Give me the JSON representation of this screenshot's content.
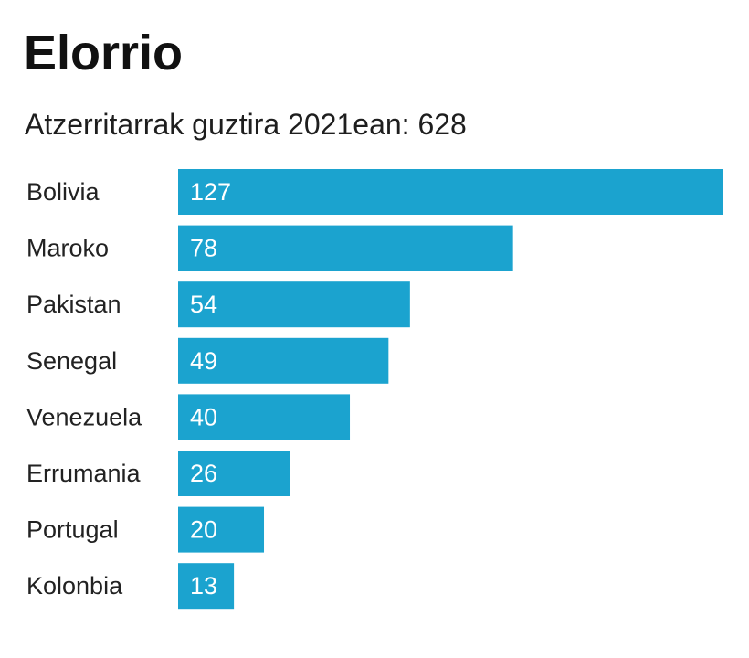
{
  "title": "Elorrio",
  "subtitle": "Atzerritarrak guztira 2021ean: 628",
  "colors": {
    "bar": "#1ba3cf",
    "bar_label": "#ffffff",
    "category_label": "#222222"
  },
  "chart_data": {
    "type": "bar",
    "orientation": "horizontal",
    "title": "Elorrio",
    "subtitle": "Atzerritarrak guztira 2021ean: 628",
    "categories": [
      "Bolivia",
      "Maroko",
      "Pakistan",
      "Senegal",
      "Venezuela",
      "Errumania",
      "Portugal",
      "Kolonbia"
    ],
    "values": [
      127,
      78,
      54,
      49,
      40,
      26,
      20,
      13
    ],
    "xlim": [
      0,
      127
    ],
    "grid": false,
    "data_labels": "inside-left"
  }
}
